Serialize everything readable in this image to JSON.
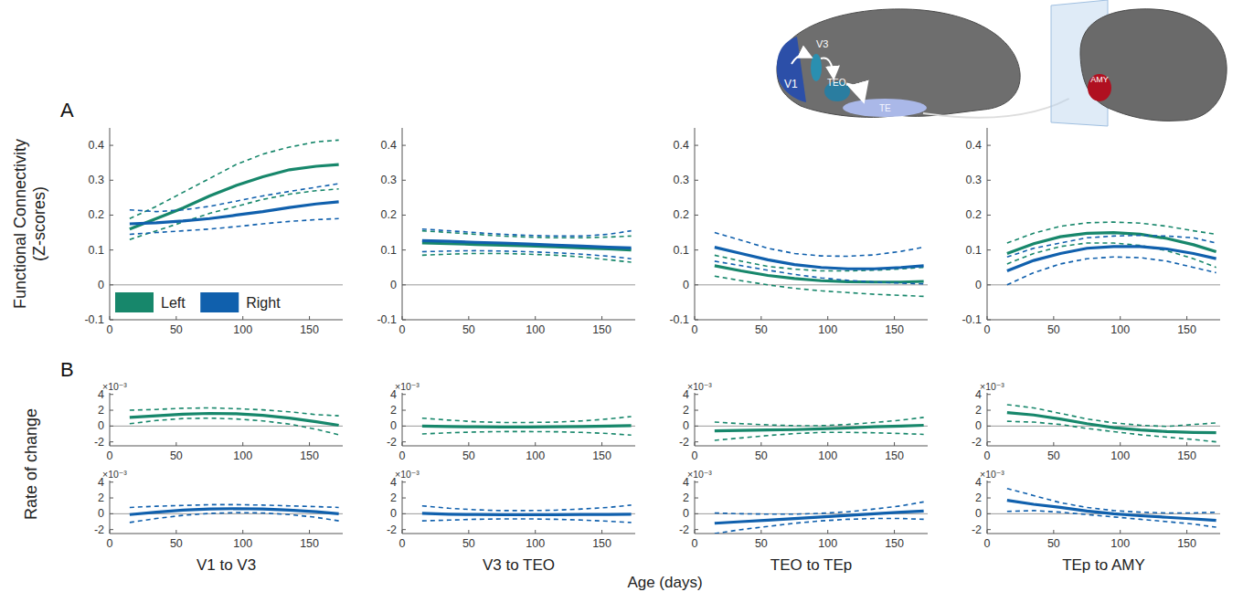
{
  "chart_data": [
    {
      "type": "line",
      "x": [
        15,
        35,
        55,
        75,
        95,
        115,
        135,
        155,
        172
      ],
      "xlim": [
        0,
        175
      ],
      "xticks": [
        0,
        50,
        100,
        150
      ],
      "ylim": [
        -0.1,
        0.45
      ],
      "yticks": [
        -0.1,
        0,
        0.1,
        0.2,
        0.3,
        0.4
      ],
      "legend": "lower left",
      "series": [
        {
          "name": "Left",
          "color": "#17876b",
          "values": [
            0.16,
            0.19,
            0.22,
            0.255,
            0.285,
            0.31,
            0.33,
            0.34,
            0.345
          ],
          "lower": [
            0.13,
            0.155,
            0.18,
            0.205,
            0.225,
            0.245,
            0.26,
            0.27,
            0.275
          ],
          "upper": [
            0.19,
            0.225,
            0.265,
            0.305,
            0.345,
            0.375,
            0.395,
            0.41,
            0.415
          ]
        },
        {
          "name": "Right",
          "color": "#1060ad",
          "values": [
            0.175,
            0.178,
            0.183,
            0.19,
            0.2,
            0.21,
            0.222,
            0.232,
            0.238
          ],
          "lower": [
            0.145,
            0.15,
            0.155,
            0.16,
            0.167,
            0.175,
            0.182,
            0.187,
            0.19
          ],
          "upper": [
            0.215,
            0.21,
            0.215,
            0.225,
            0.24,
            0.255,
            0.268,
            0.28,
            0.29
          ]
        }
      ]
    },
    {
      "type": "line",
      "x": [
        15,
        35,
        55,
        75,
        95,
        115,
        135,
        155,
        172
      ],
      "xlim": [
        0,
        175
      ],
      "xticks": [
        0,
        50,
        100,
        150
      ],
      "ylim": [
        -0.1,
        0.45
      ],
      "yticks": [
        -0.1,
        0,
        0.1,
        0.2,
        0.3,
        0.4
      ],
      "series": [
        {
          "name": "Left",
          "color": "#17876b",
          "values": [
            0.12,
            0.118,
            0.116,
            0.114,
            0.112,
            0.109,
            0.106,
            0.103,
            0.1
          ],
          "lower": [
            0.085,
            0.088,
            0.09,
            0.09,
            0.088,
            0.085,
            0.08,
            0.072,
            0.065
          ],
          "upper": [
            0.155,
            0.15,
            0.145,
            0.14,
            0.137,
            0.135,
            0.135,
            0.137,
            0.14
          ]
        },
        {
          "name": "Right",
          "color": "#1060ad",
          "values": [
            0.127,
            0.125,
            0.122,
            0.12,
            0.117,
            0.114,
            0.111,
            0.108,
            0.106
          ],
          "lower": [
            0.095,
            0.097,
            0.098,
            0.097,
            0.095,
            0.092,
            0.088,
            0.082,
            0.075
          ],
          "upper": [
            0.16,
            0.155,
            0.15,
            0.145,
            0.142,
            0.14,
            0.14,
            0.145,
            0.155
          ]
        }
      ]
    },
    {
      "type": "line",
      "x": [
        15,
        35,
        55,
        75,
        95,
        115,
        135,
        155,
        172
      ],
      "xlim": [
        0,
        175
      ],
      "xticks": [
        0,
        50,
        100,
        150
      ],
      "ylim": [
        -0.1,
        0.45
      ],
      "yticks": [
        -0.1,
        0,
        0.1,
        0.2,
        0.3,
        0.4
      ],
      "series": [
        {
          "name": "Left",
          "color": "#17876b",
          "values": [
            0.055,
            0.04,
            0.027,
            0.018,
            0.012,
            0.009,
            0.008,
            0.008,
            0.01
          ],
          "lower": [
            0.025,
            0.012,
            0.0,
            -0.01,
            -0.017,
            -0.022,
            -0.027,
            -0.03,
            -0.033
          ],
          "upper": [
            0.085,
            0.068,
            0.053,
            0.045,
            0.04,
            0.04,
            0.042,
            0.046,
            0.05
          ]
        },
        {
          "name": "Right",
          "color": "#1060ad",
          "values": [
            0.108,
            0.09,
            0.072,
            0.058,
            0.05,
            0.046,
            0.046,
            0.05,
            0.055
          ],
          "lower": [
            0.068,
            0.055,
            0.042,
            0.03,
            0.02,
            0.013,
            0.008,
            0.005,
            0.003
          ],
          "upper": [
            0.15,
            0.128,
            0.105,
            0.09,
            0.083,
            0.082,
            0.086,
            0.096,
            0.108
          ]
        }
      ]
    },
    {
      "type": "line",
      "x": [
        15,
        35,
        55,
        75,
        95,
        115,
        135,
        155,
        172
      ],
      "xlim": [
        0,
        175
      ],
      "xticks": [
        0,
        50,
        100,
        150
      ],
      "ylim": [
        -0.1,
        0.45
      ],
      "yticks": [
        -0.1,
        0,
        0.1,
        0.2,
        0.3,
        0.4
      ],
      "series": [
        {
          "name": "Left",
          "color": "#17876b",
          "values": [
            0.09,
            0.118,
            0.138,
            0.148,
            0.15,
            0.145,
            0.133,
            0.115,
            0.095
          ],
          "lower": [
            0.06,
            0.09,
            0.11,
            0.12,
            0.12,
            0.113,
            0.098,
            0.075,
            0.05
          ],
          "upper": [
            0.12,
            0.148,
            0.168,
            0.178,
            0.18,
            0.177,
            0.168,
            0.155,
            0.145
          ]
        },
        {
          "name": "Right",
          "color": "#1060ad",
          "values": [
            0.04,
            0.07,
            0.09,
            0.105,
            0.11,
            0.11,
            0.103,
            0.09,
            0.075
          ],
          "lower": [
            0.0,
            0.035,
            0.06,
            0.075,
            0.08,
            0.078,
            0.068,
            0.05,
            0.035
          ],
          "upper": [
            0.08,
            0.105,
            0.12,
            0.135,
            0.14,
            0.142,
            0.14,
            0.135,
            0.12
          ]
        }
      ]
    },
    {
      "type": "line",
      "x": [
        15,
        35,
        55,
        75,
        95,
        115,
        135,
        155,
        172
      ],
      "xlim": [
        0,
        175
      ],
      "xticks": [
        0,
        50,
        100,
        150
      ],
      "ylim": [
        -2.5,
        4.2
      ],
      "yticks": [
        -2,
        0,
        2,
        4
      ],
      "y_multiplier": "×10⁻³",
      "series": [
        {
          "name": "Left",
          "color": "#17876b",
          "values": [
            1.1,
            1.3,
            1.5,
            1.6,
            1.55,
            1.35,
            1.0,
            0.55,
            0.1
          ],
          "lower": [
            0.3,
            0.7,
            0.95,
            1.0,
            0.9,
            0.65,
            0.25,
            -0.4,
            -1.1
          ],
          "upper": [
            2.0,
            2.1,
            2.25,
            2.3,
            2.2,
            2.05,
            1.8,
            1.45,
            1.3
          ]
        }
      ]
    },
    {
      "type": "line",
      "x": [
        15,
        35,
        55,
        75,
        95,
        115,
        135,
        155,
        172
      ],
      "xlim": [
        0,
        175
      ],
      "xticks": [
        0,
        50,
        100,
        150
      ],
      "ylim": [
        -2.5,
        4.2
      ],
      "yticks": [
        -2,
        0,
        2,
        4
      ],
      "y_multiplier": "×10⁻³",
      "series": [
        {
          "name": "Left",
          "color": "#17876b",
          "values": [
            0.0,
            -0.05,
            -0.1,
            -0.12,
            -0.12,
            -0.1,
            -0.05,
            0.0,
            0.05
          ],
          "lower": [
            -1.0,
            -0.85,
            -0.75,
            -0.7,
            -0.7,
            -0.72,
            -0.8,
            -0.95,
            -1.15
          ],
          "upper": [
            1.0,
            0.75,
            0.55,
            0.45,
            0.45,
            0.5,
            0.65,
            0.9,
            1.2
          ]
        }
      ]
    },
    {
      "type": "line",
      "x": [
        15,
        35,
        55,
        75,
        95,
        115,
        135,
        155,
        172
      ],
      "xlim": [
        0,
        175
      ],
      "xticks": [
        0,
        50,
        100,
        150
      ],
      "ylim": [
        -2.5,
        4.2
      ],
      "yticks": [
        -2,
        0,
        2,
        4
      ],
      "y_multiplier": "×10⁻³",
      "series": [
        {
          "name": "Left",
          "color": "#17876b",
          "values": [
            -0.6,
            -0.55,
            -0.5,
            -0.45,
            -0.35,
            -0.25,
            -0.1,
            0.0,
            0.1
          ],
          "lower": [
            -1.8,
            -1.5,
            -1.2,
            -0.95,
            -0.8,
            -0.8,
            -0.85,
            -0.95,
            -1.05
          ],
          "upper": [
            0.5,
            0.3,
            0.15,
            0.05,
            0.05,
            0.2,
            0.45,
            0.75,
            1.1
          ]
        }
      ]
    },
    {
      "type": "line",
      "x": [
        15,
        35,
        55,
        75,
        95,
        115,
        135,
        155,
        172
      ],
      "xlim": [
        0,
        175
      ],
      "xticks": [
        0,
        50,
        100,
        150
      ],
      "ylim": [
        -2.5,
        4.2
      ],
      "yticks": [
        -2,
        0,
        2,
        4
      ],
      "y_multiplier": "×10⁻³",
      "series": [
        {
          "name": "Left",
          "color": "#17876b",
          "values": [
            1.7,
            1.4,
            0.9,
            0.3,
            -0.2,
            -0.5,
            -0.7,
            -0.8,
            -0.85
          ],
          "lower": [
            0.6,
            0.5,
            0.2,
            -0.3,
            -0.7,
            -1.1,
            -1.4,
            -1.7,
            -2.0
          ],
          "upper": [
            2.7,
            2.3,
            1.6,
            0.9,
            0.4,
            0.1,
            -0.05,
            0.2,
            0.4
          ]
        }
      ]
    },
    {
      "type": "line",
      "x": [
        15,
        35,
        55,
        75,
        95,
        115,
        135,
        155,
        172
      ],
      "xlim": [
        0,
        175
      ],
      "xticks": [
        0,
        50,
        100,
        150
      ],
      "ylim": [
        -2.5,
        4.2
      ],
      "yticks": [
        -2,
        0,
        2,
        4
      ],
      "y_multiplier": "×10⁻³",
      "xlabel": "V1 to V3",
      "series": [
        {
          "name": "Right",
          "color": "#1060ad",
          "values": [
            -0.1,
            0.2,
            0.45,
            0.6,
            0.65,
            0.6,
            0.45,
            0.25,
            0.0
          ],
          "lower": [
            -1.1,
            -0.6,
            -0.2,
            0.05,
            0.15,
            0.1,
            -0.1,
            -0.45,
            -0.9
          ],
          "upper": [
            0.8,
            0.95,
            1.05,
            1.15,
            1.15,
            1.1,
            1.0,
            0.9,
            0.8
          ]
        }
      ]
    },
    {
      "type": "line",
      "x": [
        15,
        35,
        55,
        75,
        95,
        115,
        135,
        155,
        172
      ],
      "xlim": [
        0,
        175
      ],
      "xticks": [
        0,
        50,
        100,
        150
      ],
      "ylim": [
        -2.5,
        4.2
      ],
      "yticks": [
        -2,
        0,
        2,
        4
      ],
      "y_multiplier": "×10⁻³",
      "xlabel": "V3 to TEO",
      "series": [
        {
          "name": "Right",
          "color": "#1060ad",
          "values": [
            0.05,
            -0.05,
            -0.1,
            -0.12,
            -0.12,
            -0.12,
            -0.1,
            -0.08,
            -0.05
          ],
          "lower": [
            -0.9,
            -0.8,
            -0.7,
            -0.65,
            -0.65,
            -0.7,
            -0.8,
            -0.95,
            -1.1
          ],
          "upper": [
            1.0,
            0.7,
            0.5,
            0.4,
            0.4,
            0.45,
            0.6,
            0.8,
            1.1
          ]
        }
      ]
    },
    {
      "type": "line",
      "x": [
        15,
        35,
        55,
        75,
        95,
        115,
        135,
        155,
        172
      ],
      "xlim": [
        0,
        175
      ],
      "xticks": [
        0,
        50,
        100,
        150
      ],
      "ylim": [
        -2.5,
        4.2
      ],
      "yticks": [
        -2,
        0,
        2,
        4
      ],
      "y_multiplier": "×10⁻³",
      "xlabel": "TEO to TEp",
      "series": [
        {
          "name": "Right",
          "color": "#1060ad",
          "values": [
            -1.2,
            -1.0,
            -0.8,
            -0.6,
            -0.4,
            -0.2,
            0.0,
            0.2,
            0.35
          ],
          "lower": [
            -2.5,
            -2.0,
            -1.6,
            -1.2,
            -0.9,
            -0.7,
            -0.6,
            -0.6,
            -0.7
          ],
          "upper": [
            0.1,
            0.0,
            -0.05,
            -0.05,
            0.05,
            0.25,
            0.6,
            1.0,
            1.5
          ]
        }
      ]
    },
    {
      "type": "line",
      "x": [
        15,
        35,
        55,
        75,
        95,
        115,
        135,
        155,
        172
      ],
      "xlim": [
        0,
        175
      ],
      "xticks": [
        0,
        50,
        100,
        150
      ],
      "ylim": [
        -2.5,
        4.2
      ],
      "yticks": [
        -2,
        0,
        2,
        4
      ],
      "y_multiplier": "×10⁻³",
      "xlabel": "TEp to AMY",
      "series": [
        {
          "name": "Right",
          "color": "#1060ad",
          "values": [
            1.7,
            1.2,
            0.8,
            0.35,
            0.0,
            -0.25,
            -0.45,
            -0.65,
            -0.85
          ],
          "lower": [
            0.3,
            0.4,
            0.2,
            -0.1,
            -0.4,
            -0.7,
            -1.0,
            -1.3,
            -1.7
          ],
          "upper": [
            3.2,
            2.3,
            1.4,
            0.8,
            0.4,
            0.2,
            0.1,
            0.1,
            0.2
          ]
        }
      ]
    }
  ],
  "figure": {
    "panel_letters": [
      "A",
      "B"
    ],
    "row_labels": [
      "Functional Connectivity (Z-scores)",
      "Rate of change"
    ],
    "x_label": "Age (days)",
    "brain_labels": [
      "V1",
      "V3",
      "TEO",
      "TE",
      "AMY"
    ]
  }
}
